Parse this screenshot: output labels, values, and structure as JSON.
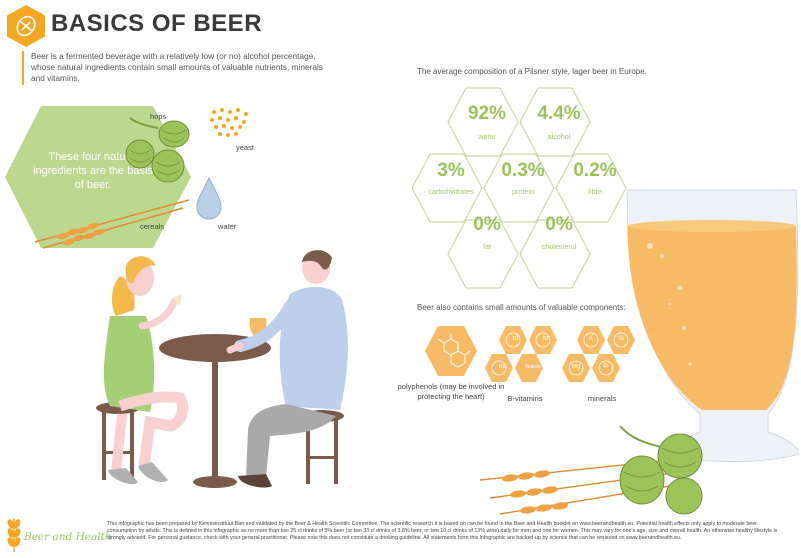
{
  "header": {
    "title": "BASICS OF BEER",
    "intro": "Beer is a fermented beverage with a relatively low (or no) alcohol percentage, whose natural ingredients contain small amounts of valuable nutrients, minerals and vitamins."
  },
  "ingredients": {
    "basis_text": "These four natural ingredients are the basis of beer.",
    "hops": "hops",
    "yeast": "yeast",
    "water": "water",
    "cereals": "cereals"
  },
  "composition": {
    "heading": "The average composition of a Pilsner style, lager beer in Europe.",
    "items": [
      {
        "value": "92%",
        "label": "water"
      },
      {
        "value": "4.4%",
        "label": "alcohol"
      },
      {
        "value": "3%",
        "label": "carbohydrates"
      },
      {
        "value": "0.3%",
        "label": "protein"
      },
      {
        "value": "0.2%",
        "label": "fibre"
      },
      {
        "value": "0%",
        "label": "fat"
      },
      {
        "value": "0%",
        "label": "cholesterol"
      }
    ]
  },
  "components": {
    "heading": "Beer also contains small amounts of valuable components:",
    "polyphenols": "polyphenols (may be involved in protecting the heart)",
    "b_vitamins": "B-vitamins",
    "minerals": "minerals",
    "vitamin_badges": [
      "B1",
      "B2",
      "B6",
      "Niacin"
    ],
    "mineral_badges": [
      "K",
      "Si",
      "Mg",
      "P"
    ]
  },
  "footer": {
    "brand": "Beer and Health",
    "text": "This infographic has been prepared by Kennisinstituut Bier and validated by the Beer & Health Scientific Committee. The scientific research it is based on can be found in the Beer and Health booklet on www.beerandhealth.eu. Potential health effects only apply to moderate beer consumption by adults. This is defined in this infographic as no more than two 25 cl drinks of 5% beer (or two 33 cl drinks of 3.8% beer, or two 10 cl drinks of 13% wine) daily for men and one for women. This may vary for one's age, size and overall health. An otherwise healthy lifestyle is strongly advised. For personal guidance, check with your general practitioner. Please note this does not constitute a drinking guideline. All statements form this infographic are backed-up by science that can be retrieved on www.beerandhealth.eu."
  },
  "colors": {
    "orange": "#f5a623",
    "green": "#9bc35a",
    "beer": "#f7bb66"
  }
}
